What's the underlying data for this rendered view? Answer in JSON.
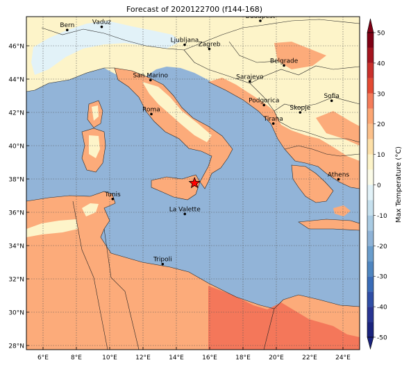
{
  "title": "Forecast of 2020122700 (f144-168)",
  "lon_range": [
    5,
    25
  ],
  "lat_range": [
    27.75,
    47.75
  ],
  "lon_ticks": [
    {
      "value": 6,
      "label": "6°E"
    },
    {
      "value": 8,
      "label": "8°E"
    },
    {
      "value": 10,
      "label": "10°E"
    },
    {
      "value": 12,
      "label": "12°E"
    },
    {
      "value": 14,
      "label": "14°E"
    },
    {
      "value": 16,
      "label": "16°E"
    },
    {
      "value": 18,
      "label": "18°E"
    },
    {
      "value": 20,
      "label": "20°E"
    },
    {
      "value": 22,
      "label": "22°E"
    },
    {
      "value": 24,
      "label": "24°E"
    }
  ],
  "lat_ticks": [
    {
      "value": 28,
      "label": "28°N"
    },
    {
      "value": 30,
      "label": "30°N"
    },
    {
      "value": 32,
      "label": "32°N"
    },
    {
      "value": 34,
      "label": "34°N"
    },
    {
      "value": 36,
      "label": "36°N"
    },
    {
      "value": 38,
      "label": "38°N"
    },
    {
      "value": 40,
      "label": "40°N"
    },
    {
      "value": 42,
      "label": "42°N"
    },
    {
      "value": 44,
      "label": "44°N"
    },
    {
      "value": 46,
      "label": "46°N"
    }
  ],
  "cities": [
    {
      "name": "Bern",
      "lon": 7.45,
      "lat": 46.95
    },
    {
      "name": "Vaduz",
      "lon": 9.52,
      "lat": 47.14
    },
    {
      "name": "Budapest",
      "lon": 19.04,
      "lat": 47.5
    },
    {
      "name": "Ljubljana",
      "lon": 14.5,
      "lat": 46.06
    },
    {
      "name": "Zagreb",
      "lon": 15.98,
      "lat": 45.81
    },
    {
      "name": "Belgrade",
      "lon": 20.46,
      "lat": 44.82
    },
    {
      "name": "San Marino",
      "lon": 12.45,
      "lat": 43.94
    },
    {
      "name": "Sarajevo",
      "lon": 18.41,
      "lat": 43.86
    },
    {
      "name": "Sofia",
      "lon": 23.32,
      "lat": 42.7
    },
    {
      "name": "Podgorica",
      "lon": 19.26,
      "lat": 42.44
    },
    {
      "name": "Skopje",
      "lon": 21.43,
      "lat": 42.0
    },
    {
      "name": "Roma",
      "lon": 12.5,
      "lat": 41.9
    },
    {
      "name": "Tirana",
      "lon": 19.82,
      "lat": 41.33
    },
    {
      "name": "Athens",
      "lon": 23.73,
      "lat": 37.98
    },
    {
      "name": "Tunis",
      "lon": 10.18,
      "lat": 36.8
    },
    {
      "name": "La Valette",
      "lon": 14.51,
      "lat": 35.9
    },
    {
      "name": "Tripoli",
      "lon": 13.18,
      "lat": 32.89
    }
  ],
  "marker": {
    "lon": 15.09,
    "lat": 37.75,
    "symbol": "star",
    "color": "#ff0000"
  },
  "colorbar": {
    "label": "Max Temperature (°C)",
    "ticks": [
      "-50",
      "-40",
      "-30",
      "-20",
      "-10",
      "0",
      "10",
      "20",
      "30",
      "40",
      "50"
    ],
    "bins": [
      {
        "from": -50,
        "to": -45,
        "color": "#1a237e"
      },
      {
        "from": -45,
        "to": -40,
        "color": "#283593"
      },
      {
        "from": -40,
        "to": -35,
        "color": "#2f4ea6"
      },
      {
        "from": -35,
        "to": -30,
        "color": "#3a6cb8"
      },
      {
        "from": -30,
        "to": -25,
        "color": "#4f86c0"
      },
      {
        "from": -25,
        "to": -20,
        "color": "#6a9dcc"
      },
      {
        "from": -20,
        "to": -15,
        "color": "#8fb3d7"
      },
      {
        "from": -15,
        "to": -10,
        "color": "#a9cbe3"
      },
      {
        "from": -10,
        "to": -5,
        "color": "#c6e0ee"
      },
      {
        "from": -5,
        "to": 0,
        "color": "#e2f2f8"
      },
      {
        "from": 0,
        "to": 5,
        "color": "#fbfbe8"
      },
      {
        "from": 5,
        "to": 10,
        "color": "#fdf4c9"
      },
      {
        "from": 10,
        "to": 15,
        "color": "#fde0a8"
      },
      {
        "from": 15,
        "to": 20,
        "color": "#fcc08a"
      },
      {
        "from": 20,
        "to": 25,
        "color": "#fca673"
      },
      {
        "from": 25,
        "to": 30,
        "color": "#f47c5a"
      },
      {
        "from": 30,
        "to": 35,
        "color": "#e34a33"
      },
      {
        "from": 35,
        "to": 40,
        "color": "#c9302c"
      },
      {
        "from": 40,
        "to": 45,
        "color": "#a4151f"
      },
      {
        "from": 45,
        "to": 50,
        "color": "#7f0015"
      }
    ]
  },
  "colors": {
    "sea": "#92b4d8",
    "land_warm": "#fcab7a",
    "land_mild": "#fdf4c9",
    "land_hot": "#f4775a",
    "snow": "#e2f2f8"
  }
}
